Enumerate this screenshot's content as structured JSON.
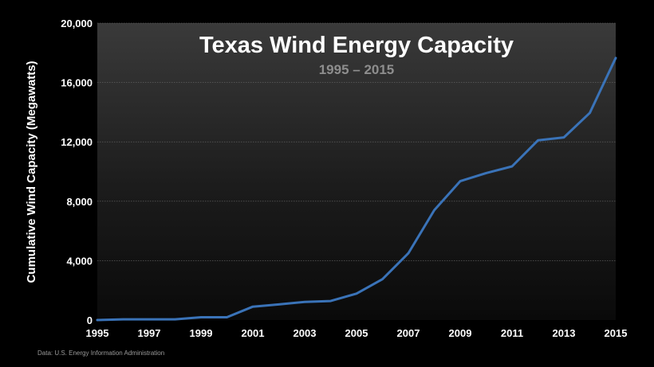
{
  "chart_data": {
    "type": "line",
    "title": "Texas Wind Energy Capacity",
    "subtitle": "1995 – 2015",
    "xlabel": "",
    "ylabel": "Cumulative Wind Capacity (Megawatts)",
    "xlim": [
      1995,
      2015
    ],
    "ylim": [
      0,
      20000
    ],
    "x_ticks": [
      "1995",
      "1997",
      "1999",
      "2001",
      "2003",
      "2005",
      "2007",
      "2009",
      "2011",
      "2013",
      "2015"
    ],
    "y_ticks": [
      "0",
      "4,000",
      "8,000",
      "12,000",
      "16,000",
      "20,000"
    ],
    "grid": true,
    "source": "Data: U.S. Energy Information Administration",
    "line_color": "#3a73b8",
    "series": [
      {
        "x": [
          1995,
          1996,
          1997,
          1998,
          1999,
          2000,
          2001,
          2002,
          2003,
          2004,
          2005,
          2006,
          2007,
          2008,
          2009,
          2010,
          2011,
          2012,
          2013,
          2014,
          2015
        ],
        "values": [
          0,
          50,
          50,
          50,
          190,
          190,
          900,
          1050,
          1220,
          1280,
          1780,
          2750,
          4500,
          7400,
          9350,
          9900,
          10350,
          12100,
          12300,
          13950,
          17650
        ]
      }
    ]
  }
}
